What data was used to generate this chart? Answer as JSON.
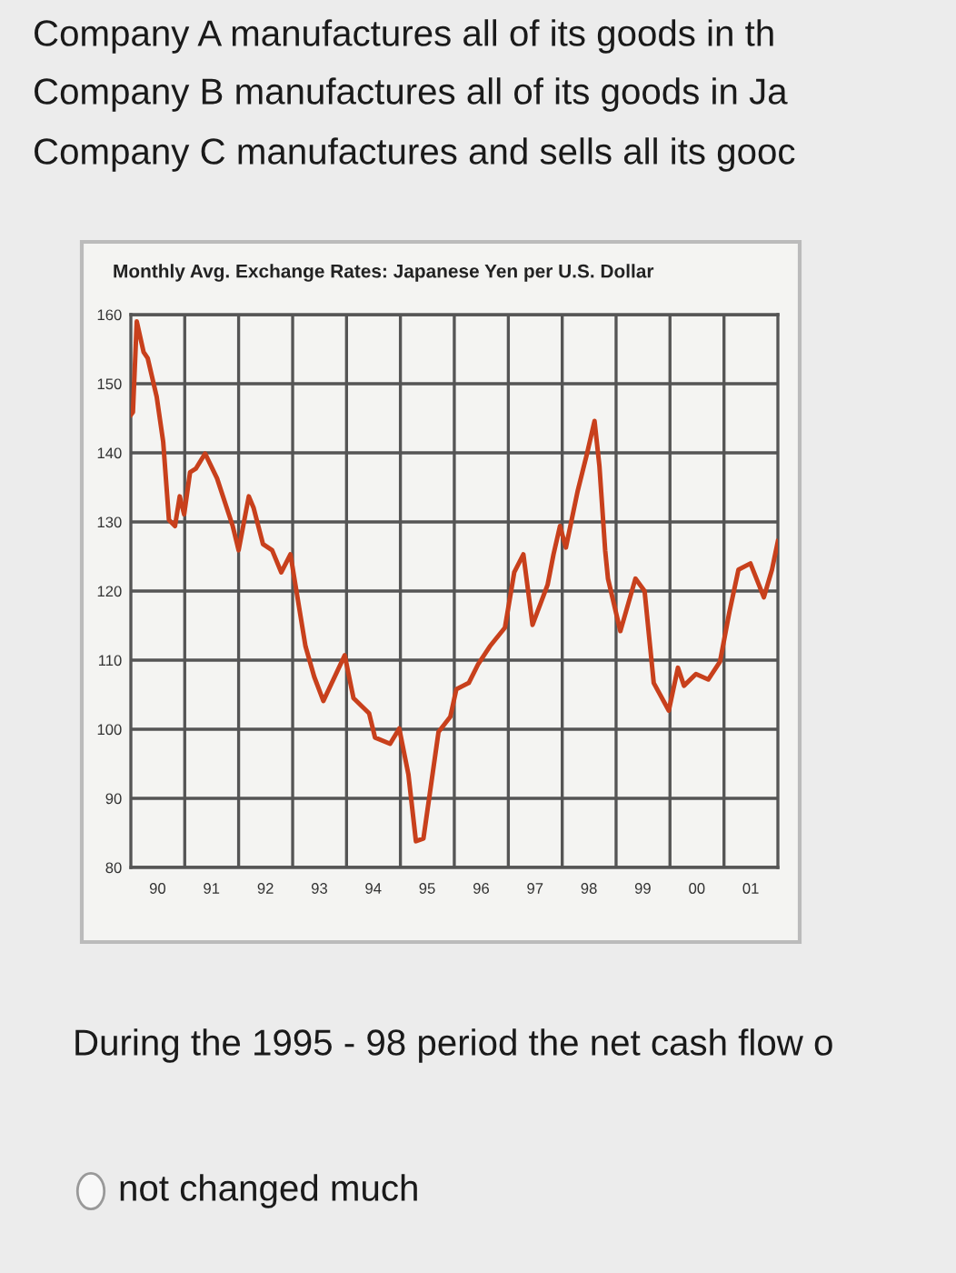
{
  "chart_data": {
    "type": "line",
    "title": "Monthly Avg. Exchange Rates: Japanese Yen per U.S. Dollar",
    "annotations": [
      "Company A manufactures all of its goods in th",
      "Company B manufactures all of its goods in Ja",
      "Company C manufactures and sells all its gooc",
      "During the 1995 - 98 period the net cash flow o",
      "not changed much"
    ],
    "x": [
      "1990-01-01",
      "1990-01-15",
      "1990-02-10",
      "1990-03-28",
      "1990-04-25",
      "1990-06-25",
      "1990-08-08",
      "1990-09-16",
      "1990-10-27",
      "1990-11-28",
      "1990-12-28",
      "1991-02-06",
      "1991-03-17",
      "1991-05-19",
      "1991-08-08",
      "1991-11-22",
      "1992-01-01",
      "1992-03-10",
      "1992-04-12",
      "1992-06-14",
      "1992-08-15",
      "1992-10-16",
      "1992-12-17",
      "1993-03-29",
      "1993-05-27",
      "1993-07-28",
      "1993-12-20",
      "1994-02-17",
      "1994-06-03",
      "1994-07-13",
      "1994-10-23",
      "1994-12-24",
      "1995-02-24",
      "1995-04-16",
      "1995-06-06",
      "1995-09-16",
      "1995-12-05",
      "1996-01-15",
      "1996-04-08",
      "1996-06-10",
      "1996-08-29",
      "1996-12-09",
      "1997-02-10",
      "1997-04-13",
      "1997-06-14",
      "1997-09-24",
      "1997-11-03",
      "1997-12-17",
      "1998-01-26",
      "1998-04-16",
      "1998-06-17",
      "1998-08-08",
      "1998-09-10",
      "1998-10-19",
      "1998-11-07",
      "1999-01-30",
      "1999-05-12",
      "1999-07-13",
      "1999-09-13",
      "1999-12-24",
      "2000-02-24",
      "2000-04-05",
      "2000-06-25",
      "2000-09-16",
      "2000-12-05",
      "2001-02-06",
      "2001-04-09",
      "2001-06-29",
      "2001-09-28",
      "2001-11-22",
      "2002-01-01"
    ],
    "series": [
      {
        "color": "#c8401c",
        "values": [
          145.5,
          145.9,
          159.0,
          154.6,
          153.7,
          148.1,
          141.6,
          130.3,
          129.4,
          133.7,
          131.1,
          137.2,
          137.7,
          139.9,
          136.3,
          129.4,
          125.9,
          133.7,
          132.0,
          126.8,
          125.9,
          122.7,
          125.3,
          112.0,
          107.6,
          104.1,
          110.7,
          104.5,
          102.3,
          98.8,
          97.9,
          100.1,
          93.5,
          83.8,
          84.2,
          99.6,
          101.8,
          105.8,
          106.7,
          109.4,
          112.0,
          114.7,
          122.7,
          125.3,
          115.1,
          120.9,
          125.3,
          129.4,
          126.3,
          134.5,
          139.8,
          144.6,
          138.1,
          125.9,
          121.8,
          114.2,
          121.8,
          120.0,
          106.7,
          102.7,
          108.9,
          106.3,
          108.0,
          107.2,
          109.8,
          116.9,
          123.1,
          124.0,
          119.1,
          123.1,
          127.2
        ]
      }
    ],
    "xlim": [
      "1990-01-01",
      "2002-01-01"
    ],
    "xticks": [
      {
        "value": "1990-07-01",
        "label": "90"
      },
      {
        "value": "1991-07-01",
        "label": "91"
      },
      {
        "value": "1992-07-01",
        "label": "92"
      },
      {
        "value": "1993-07-01",
        "label": "93"
      },
      {
        "value": "1994-07-01",
        "label": "94"
      },
      {
        "value": "1995-07-01",
        "label": "95"
      },
      {
        "value": "1996-07-01",
        "label": "96"
      },
      {
        "value": "1997-07-01",
        "label": "97"
      },
      {
        "value": "1998-07-01",
        "label": "98"
      },
      {
        "value": "1999-07-01",
        "label": "99"
      },
      {
        "value": "2000-07-01",
        "label": "00"
      },
      {
        "value": "2001-07-01",
        "label": "01"
      },
      {
        "value": "1991-01-01",
        "label": null
      },
      {
        "value": "1992-01-01",
        "label": null
      },
      {
        "value": "1993-01-01",
        "label": null
      },
      {
        "value": "1994-01-01",
        "label": null
      },
      {
        "value": "1995-01-01",
        "label": null
      },
      {
        "value": "1996-01-01",
        "label": null
      },
      {
        "value": "1997-01-01",
        "label": null
      },
      {
        "value": "1998-01-01",
        "label": null
      },
      {
        "value": "1999-01-01",
        "label": null
      },
      {
        "value": "2000-01-01",
        "label": null
      },
      {
        "value": "2001-01-01",
        "label": null
      }
    ],
    "ylim": [
      80,
      160
    ],
    "yticks": [
      80,
      90,
      100,
      110,
      120,
      130,
      140,
      150,
      160
    ],
    "grid": true,
    "marker": "none",
    "line_style": "solid"
  }
}
